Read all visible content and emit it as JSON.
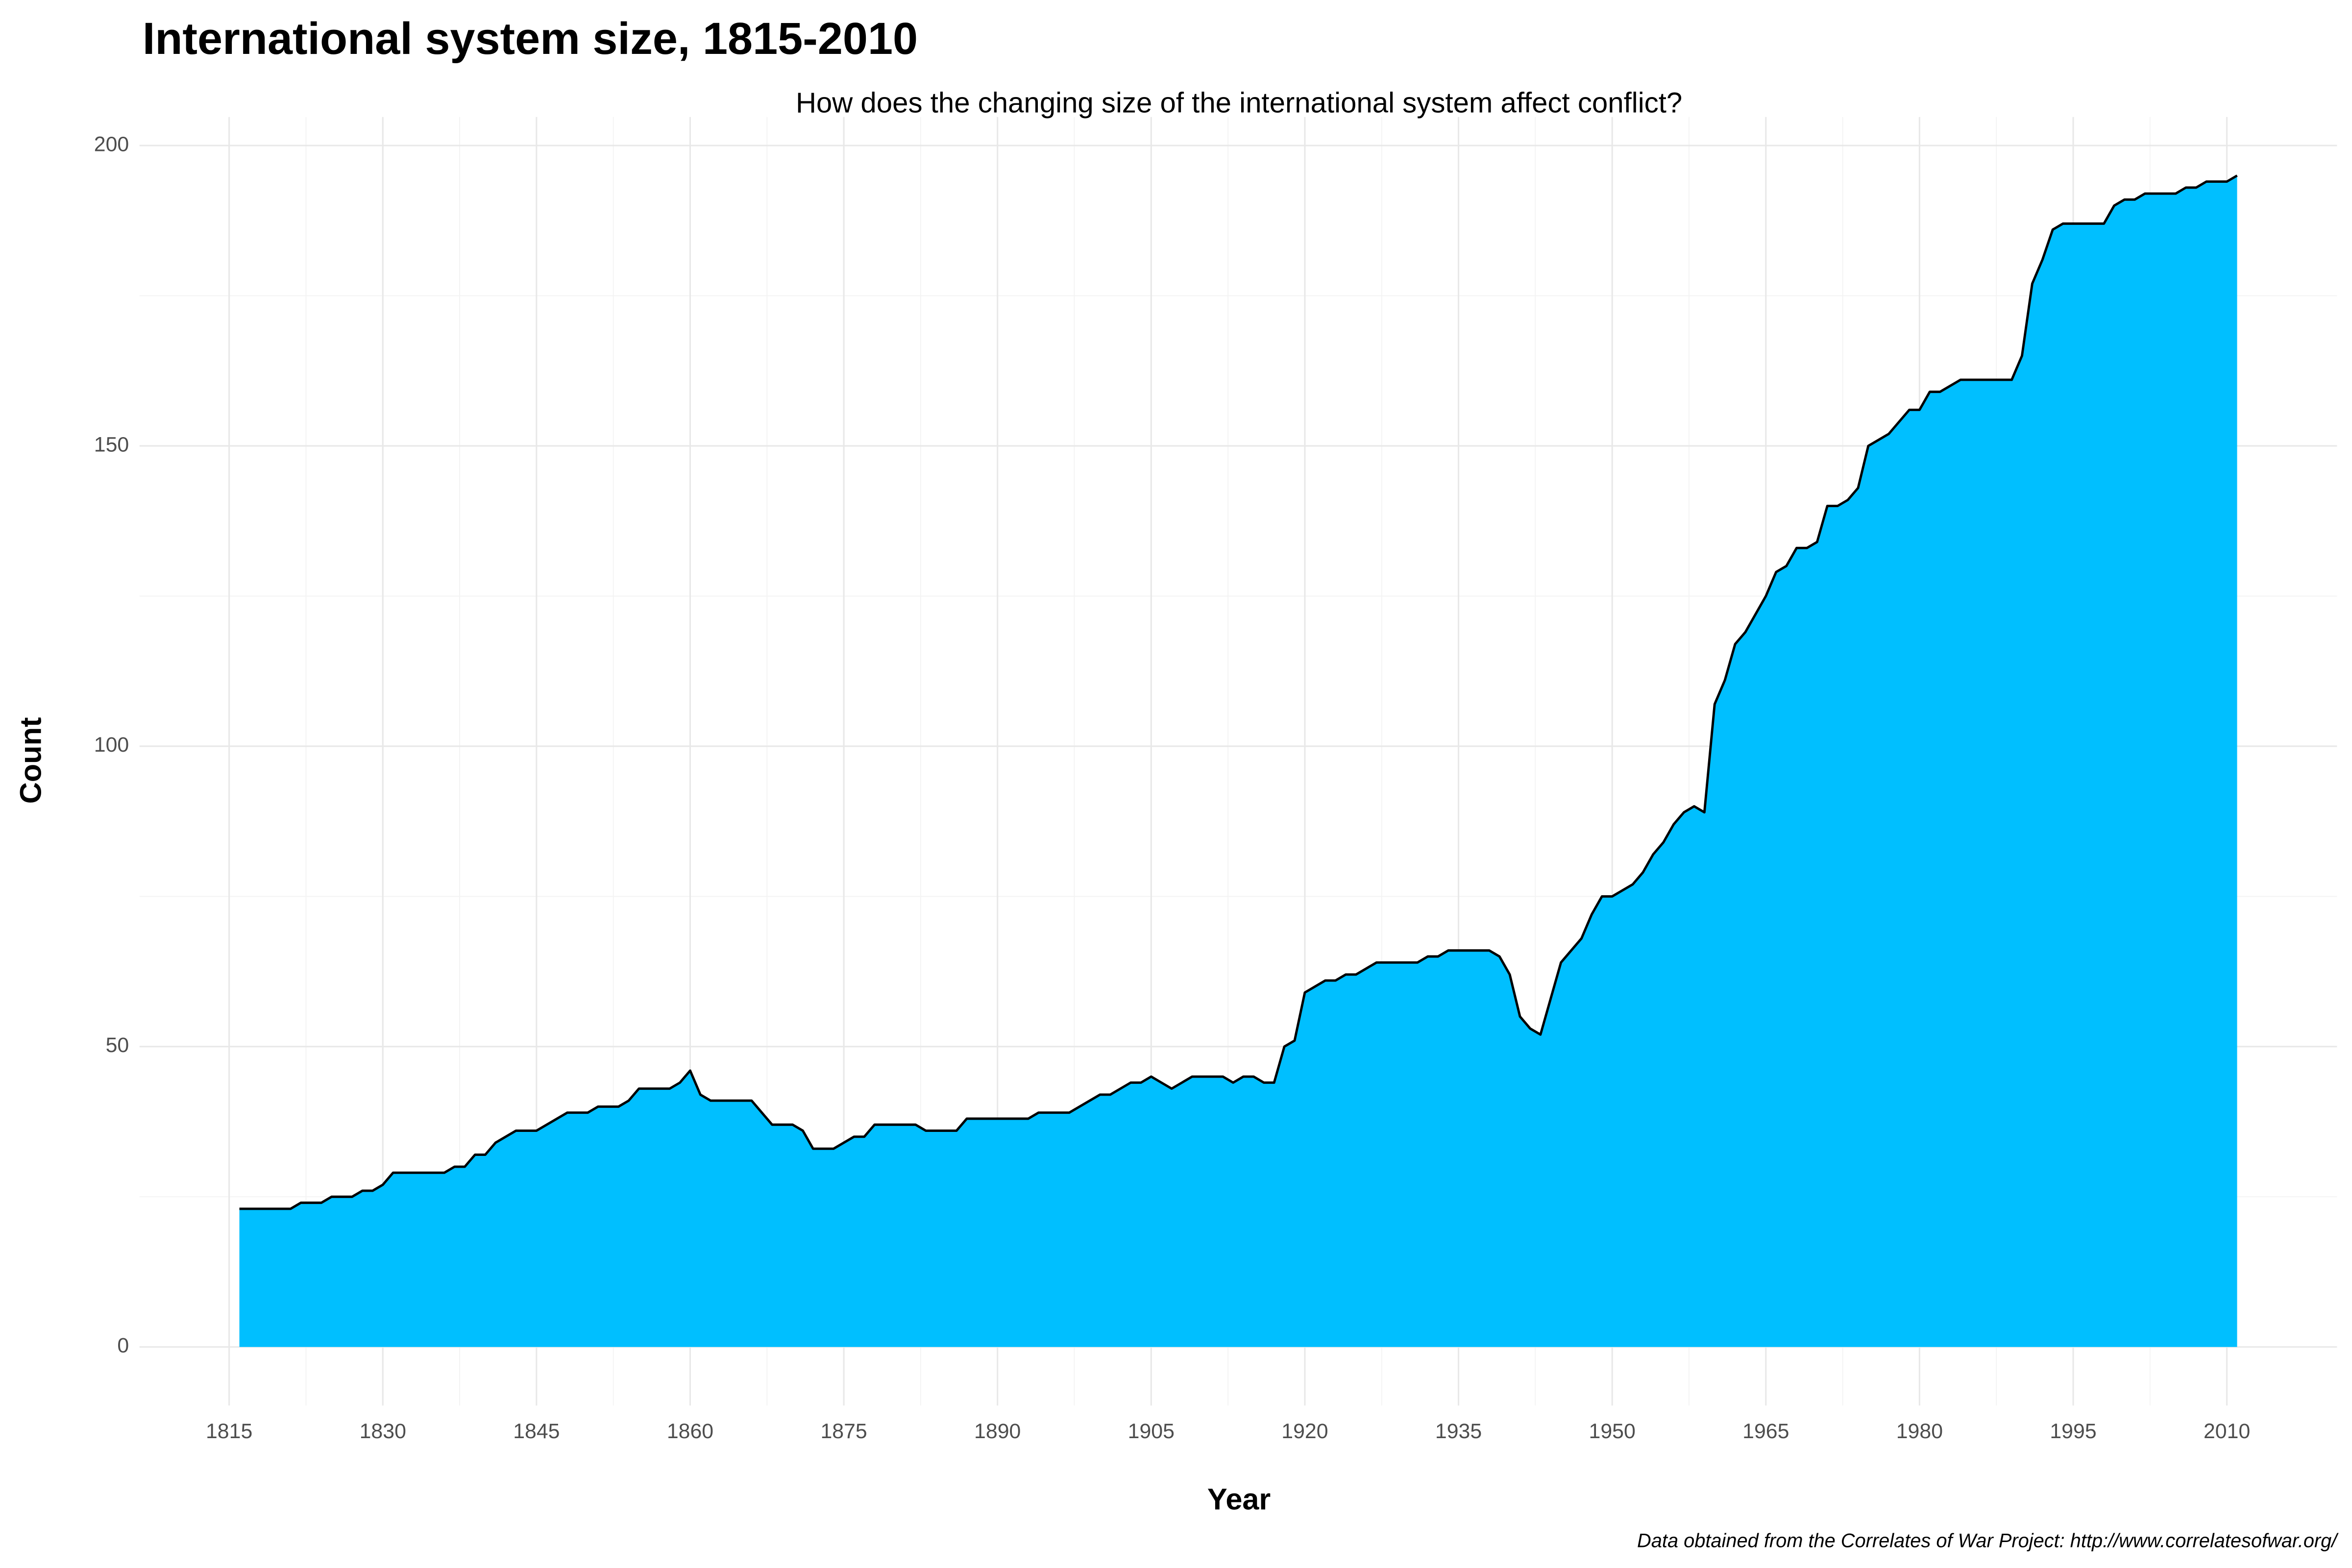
{
  "chart_data": {
    "type": "area",
    "title": "International system size, 1815-2010",
    "subtitle": "How does the changing size of the international system affect conflict?",
    "x_label": "Year",
    "y_label": "Count",
    "caption": "Data obtained from the Correlates of War Project: http://www.correlatesofwar.org/",
    "color": "#00bfff",
    "line_color": "#000000",
    "grid": true,
    "x": [
      1816,
      1817,
      1818,
      1819,
      1820,
      1821,
      1822,
      1823,
      1824,
      1825,
      1826,
      1827,
      1828,
      1829,
      1830,
      1831,
      1832,
      1833,
      1834,
      1835,
      1836,
      1837,
      1838,
      1839,
      1840,
      1841,
      1842,
      1843,
      1844,
      1845,
      1846,
      1847,
      1848,
      1849,
      1850,
      1851,
      1852,
      1853,
      1854,
      1855,
      1856,
      1857,
      1858,
      1859,
      1860,
      1861,
      1862,
      1863,
      1864,
      1865,
      1866,
      1867,
      1868,
      1869,
      1870,
      1871,
      1872,
      1873,
      1874,
      1875,
      1876,
      1877,
      1878,
      1879,
      1880,
      1881,
      1882,
      1883,
      1884,
      1885,
      1886,
      1887,
      1888,
      1889,
      1890,
      1891,
      1892,
      1893,
      1894,
      1895,
      1896,
      1897,
      1898,
      1899,
      1900,
      1901,
      1902,
      1903,
      1904,
      1905,
      1906,
      1907,
      1908,
      1909,
      1910,
      1911,
      1912,
      1913,
      1914,
      1915,
      1916,
      1917,
      1918,
      1919,
      1920,
      1921,
      1922,
      1923,
      1924,
      1925,
      1926,
      1927,
      1928,
      1929,
      1930,
      1931,
      1932,
      1933,
      1934,
      1935,
      1936,
      1937,
      1938,
      1939,
      1940,
      1941,
      1942,
      1943,
      1944,
      1945,
      1946,
      1947,
      1948,
      1949,
      1950,
      1951,
      1952,
      1953,
      1954,
      1955,
      1956,
      1957,
      1958,
      1959,
      1960,
      1961,
      1962,
      1963,
      1964,
      1965,
      1966,
      1967,
      1968,
      1969,
      1970,
      1971,
      1972,
      1973,
      1974,
      1975,
      1976,
      1977,
      1978,
      1979,
      1980,
      1981,
      1982,
      1983,
      1984,
      1985,
      1986,
      1987,
      1988,
      1989,
      1990,
      1991,
      1992,
      1993,
      1994,
      1995,
      1996,
      1997,
      1998,
      1999,
      2000,
      2001,
      2002,
      2003,
      2004,
      2005,
      2006,
      2007,
      2008,
      2009,
      2010,
      2011
    ],
    "values": [
      23,
      23,
      23,
      23,
      23,
      23,
      24,
      24,
      24,
      25,
      25,
      25,
      26,
      26,
      27,
      29,
      29,
      29,
      29,
      29,
      29,
      30,
      30,
      32,
      32,
      34,
      35,
      36,
      36,
      36,
      37,
      38,
      39,
      39,
      39,
      40,
      40,
      40,
      41,
      43,
      43,
      43,
      43,
      44,
      46,
      42,
      41,
      41,
      41,
      41,
      41,
      39,
      37,
      37,
      37,
      36,
      33,
      33,
      33,
      34,
      35,
      35,
      37,
      37,
      37,
      37,
      37,
      36,
      36,
      36,
      36,
      38,
      38,
      38,
      38,
      38,
      38,
      38,
      39,
      39,
      39,
      39,
      40,
      41,
      42,
      42,
      43,
      44,
      44,
      45,
      44,
      43,
      44,
      45,
      45,
      45,
      45,
      44,
      45,
      45,
      44,
      44,
      50,
      51,
      59,
      60,
      61,
      61,
      62,
      62,
      63,
      64,
      64,
      64,
      64,
      64,
      65,
      65,
      66,
      66,
      66,
      66,
      66,
      65,
      62,
      55,
      53,
      52,
      58,
      64,
      66,
      68,
      72,
      75,
      75,
      76,
      77,
      79,
      82,
      84,
      87,
      89,
      90,
      89,
      107,
      111,
      117,
      119,
      122,
      125,
      129,
      130,
      133,
      133,
      134,
      140,
      140,
      141,
      143,
      150,
      151,
      152,
      154,
      156,
      156,
      159,
      159,
      160,
      161,
      161,
      161,
      161,
      161,
      161,
      165,
      177,
      181,
      186,
      187,
      187,
      187,
      187,
      187,
      190,
      191,
      191,
      192,
      192,
      192,
      192,
      193,
      193,
      194,
      194,
      194,
      195
    ],
    "xlim": [
      1806.25,
      2020.75
    ],
    "ylim": [
      -9.75,
      204.75
    ],
    "xticks": [
      1815,
      1830,
      1845,
      1860,
      1875,
      1890,
      1905,
      1920,
      1935,
      1950,
      1965,
      1980,
      1995,
      2010
    ],
    "yticks": [
      0,
      50,
      100,
      150,
      200
    ]
  }
}
